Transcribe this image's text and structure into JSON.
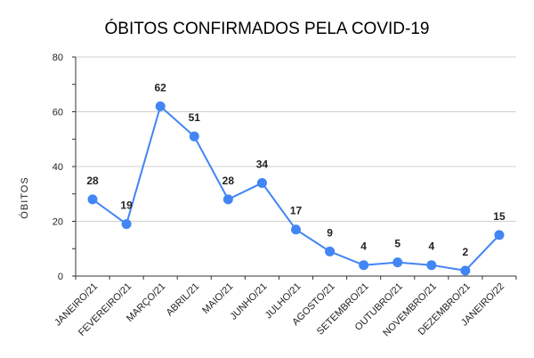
{
  "chart_data": {
    "type": "line",
    "title": "ÓBITOS CONFIRMADOS PELA COVID-19",
    "xlabel": "",
    "ylabel": "ÓBITOS",
    "ylim": [
      0,
      80
    ],
    "yticks": [
      0,
      20,
      40,
      60,
      80
    ],
    "grid": true,
    "categories": [
      "JANEIRO/21",
      "FEVEREIRO/21",
      "MARÇO/21",
      "ABRIL/21",
      "MAIO/21",
      "JUNHO/21",
      "JULHO/21",
      "AGOSTO/21",
      "SETEMBRO/21",
      "OUTUBRO/21",
      "NOVEMBRO/21",
      "DEZEMBRO/21",
      "JANEIRO/22"
    ],
    "series": [
      {
        "values": [
          28,
          19,
          62,
          51,
          28,
          34,
          17,
          9,
          4,
          5,
          4,
          2,
          15
        ],
        "color": "#4285f4"
      }
    ],
    "data_labels": true
  }
}
